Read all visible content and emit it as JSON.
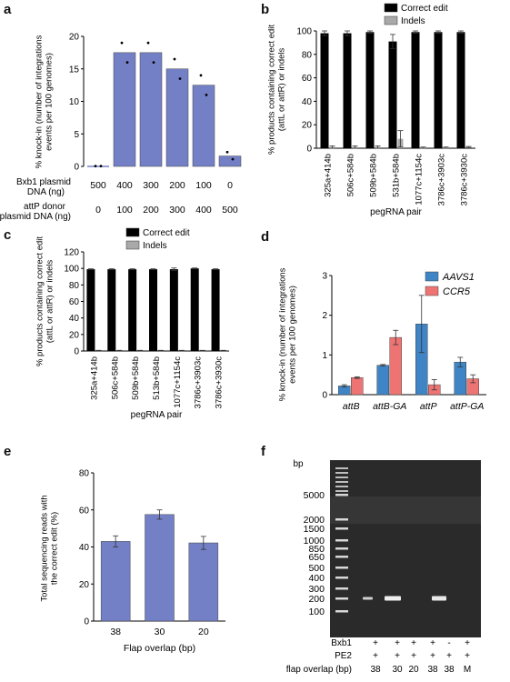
{
  "panel_labels": [
    "a",
    "b",
    "c",
    "d",
    "e",
    "f"
  ],
  "chart_data": [
    {
      "id": "a",
      "type": "bar",
      "ylabel_lines": [
        "% knock-in (number of integrations",
        "events per 100 genomes)"
      ],
      "ylim": [
        0,
        20
      ],
      "yticks": [
        0,
        5,
        10,
        15,
        20
      ],
      "values": [
        0,
        17.5,
        17.5,
        15.0,
        12.5,
        1.6
      ],
      "points": [
        [
          0.05,
          0.05
        ],
        [
          19.0,
          16.0
        ],
        [
          19.0,
          16.0
        ],
        [
          16.5,
          13.5
        ],
        [
          14.0,
          11.0
        ],
        [
          2.2,
          1.1
        ]
      ],
      "bxb1_label_lines": [
        "Bxb1 plasmid",
        "DNA (ng)"
      ],
      "bxb1_values": [
        "500",
        "400",
        "300",
        "200",
        "100",
        "0"
      ],
      "attp_label_lines": [
        "attP donor",
        "plasmid DNA (ng)"
      ],
      "attp_values": [
        "0",
        "100",
        "200",
        "300",
        "400",
        "500"
      ],
      "color": "#7380c6"
    },
    {
      "id": "b",
      "type": "bar",
      "ylabel_lines": [
        "% products containing correct edit",
        "(attL or attR) or indels"
      ],
      "ylim": [
        0,
        100
      ],
      "yticks": [
        0,
        20,
        40,
        60,
        80,
        100
      ],
      "categories": [
        "325a+414b",
        "506c+584b",
        "509b+584b",
        "531b+584b",
        "1077c+1154c",
        "3786c+3903c",
        "3786c+3930c"
      ],
      "xlabel": "pegRNA pair",
      "series": [
        {
          "name": "Correct edit",
          "values": [
            98,
            98,
            99,
            91,
            99,
            99,
            99
          ],
          "errors": [
            2,
            2,
            1,
            6,
            1,
            1,
            1
          ],
          "color": "#000000"
        },
        {
          "name": "Indels",
          "values": [
            1,
            1,
            1,
            8,
            0.5,
            0.5,
            1
          ],
          "errors": [
            1,
            1,
            1,
            7,
            0.5,
            0.5,
            0.5
          ],
          "color": "#a9a9a9"
        }
      ]
    },
    {
      "id": "c",
      "type": "bar",
      "ylabel_lines": [
        "% products containing correct edit",
        "(attL or attR) or indels"
      ],
      "ylim": [
        0,
        120
      ],
      "yticks": [
        0,
        20,
        40,
        60,
        80,
        100,
        120
      ],
      "categories": [
        "325a+414b",
        "506c+584b",
        "509b+584b",
        "513b+584b",
        "1077c+1154c",
        "3786c+3903c",
        "3786c+3930c"
      ],
      "xlabel": "pegRNA pair",
      "series": [
        {
          "name": "Correct edit",
          "values": [
            99,
            99,
            99,
            99,
            99,
            100,
            99
          ],
          "errors": [
            0.5,
            0.5,
            0.5,
            0.5,
            1.5,
            0.5,
            0.5
          ],
          "color": "#000000"
        },
        {
          "name": "Indels",
          "values": [
            0.5,
            0.5,
            0.5,
            0.5,
            0.5,
            0.5,
            0.5
          ],
          "errors": [
            0.3,
            0.3,
            0.3,
            0.3,
            0.3,
            0.3,
            0.3
          ],
          "color": "#a9a9a9"
        }
      ]
    },
    {
      "id": "d",
      "type": "bar",
      "ylabel_lines": [
        "% knock-in (number of integrations",
        "events per 100 genomes)"
      ],
      "ylim": [
        0,
        3
      ],
      "yticks": [
        0,
        1,
        2,
        3
      ],
      "categories": [
        "attB",
        "attB-GA",
        "attP",
        "attP-GA"
      ],
      "series": [
        {
          "name": "AAVS1",
          "values": [
            0.22,
            0.74,
            1.78,
            0.82
          ],
          "errors": [
            0.03,
            0.02,
            0.72,
            0.12
          ],
          "color": "#3f85c6"
        },
        {
          "name": "CCR5",
          "values": [
            0.43,
            1.44,
            0.25,
            0.4
          ],
          "errors": [
            0.02,
            0.18,
            0.13,
            0.1
          ],
          "color": "#ee7474"
        }
      ]
    },
    {
      "id": "e",
      "type": "bar",
      "ylabel_lines": [
        "Total sequencing reads with",
        "the correct edit (%)"
      ],
      "ylim": [
        0,
        80
      ],
      "yticks": [
        0,
        20,
        40,
        60,
        80
      ],
      "categories": [
        "38",
        "30",
        "20"
      ],
      "values": [
        43,
        57.5,
        42.2
      ],
      "errors": [
        3,
        2.5,
        3.5
      ],
      "xlabel": "Flap overlap (bp)",
      "color": "#7380c6"
    }
  ],
  "gel": {
    "unit_label": "bp",
    "ladder": [
      "5000",
      "2000",
      "1500",
      "1000",
      "850",
      "650",
      "500",
      "400",
      "300",
      "200",
      "100"
    ],
    "rows": [
      {
        "label": "Bxb1",
        "values": [
          "+",
          "+",
          "+",
          "+",
          "-",
          "+"
        ]
      },
      {
        "label": "PE2",
        "values": [
          "+",
          "+",
          "+",
          "+",
          "+",
          "+"
        ]
      },
      {
        "label": "flap overlap (bp)",
        "values": [
          "38",
          "30",
          "20",
          "38",
          "38",
          "M"
        ]
      }
    ]
  }
}
